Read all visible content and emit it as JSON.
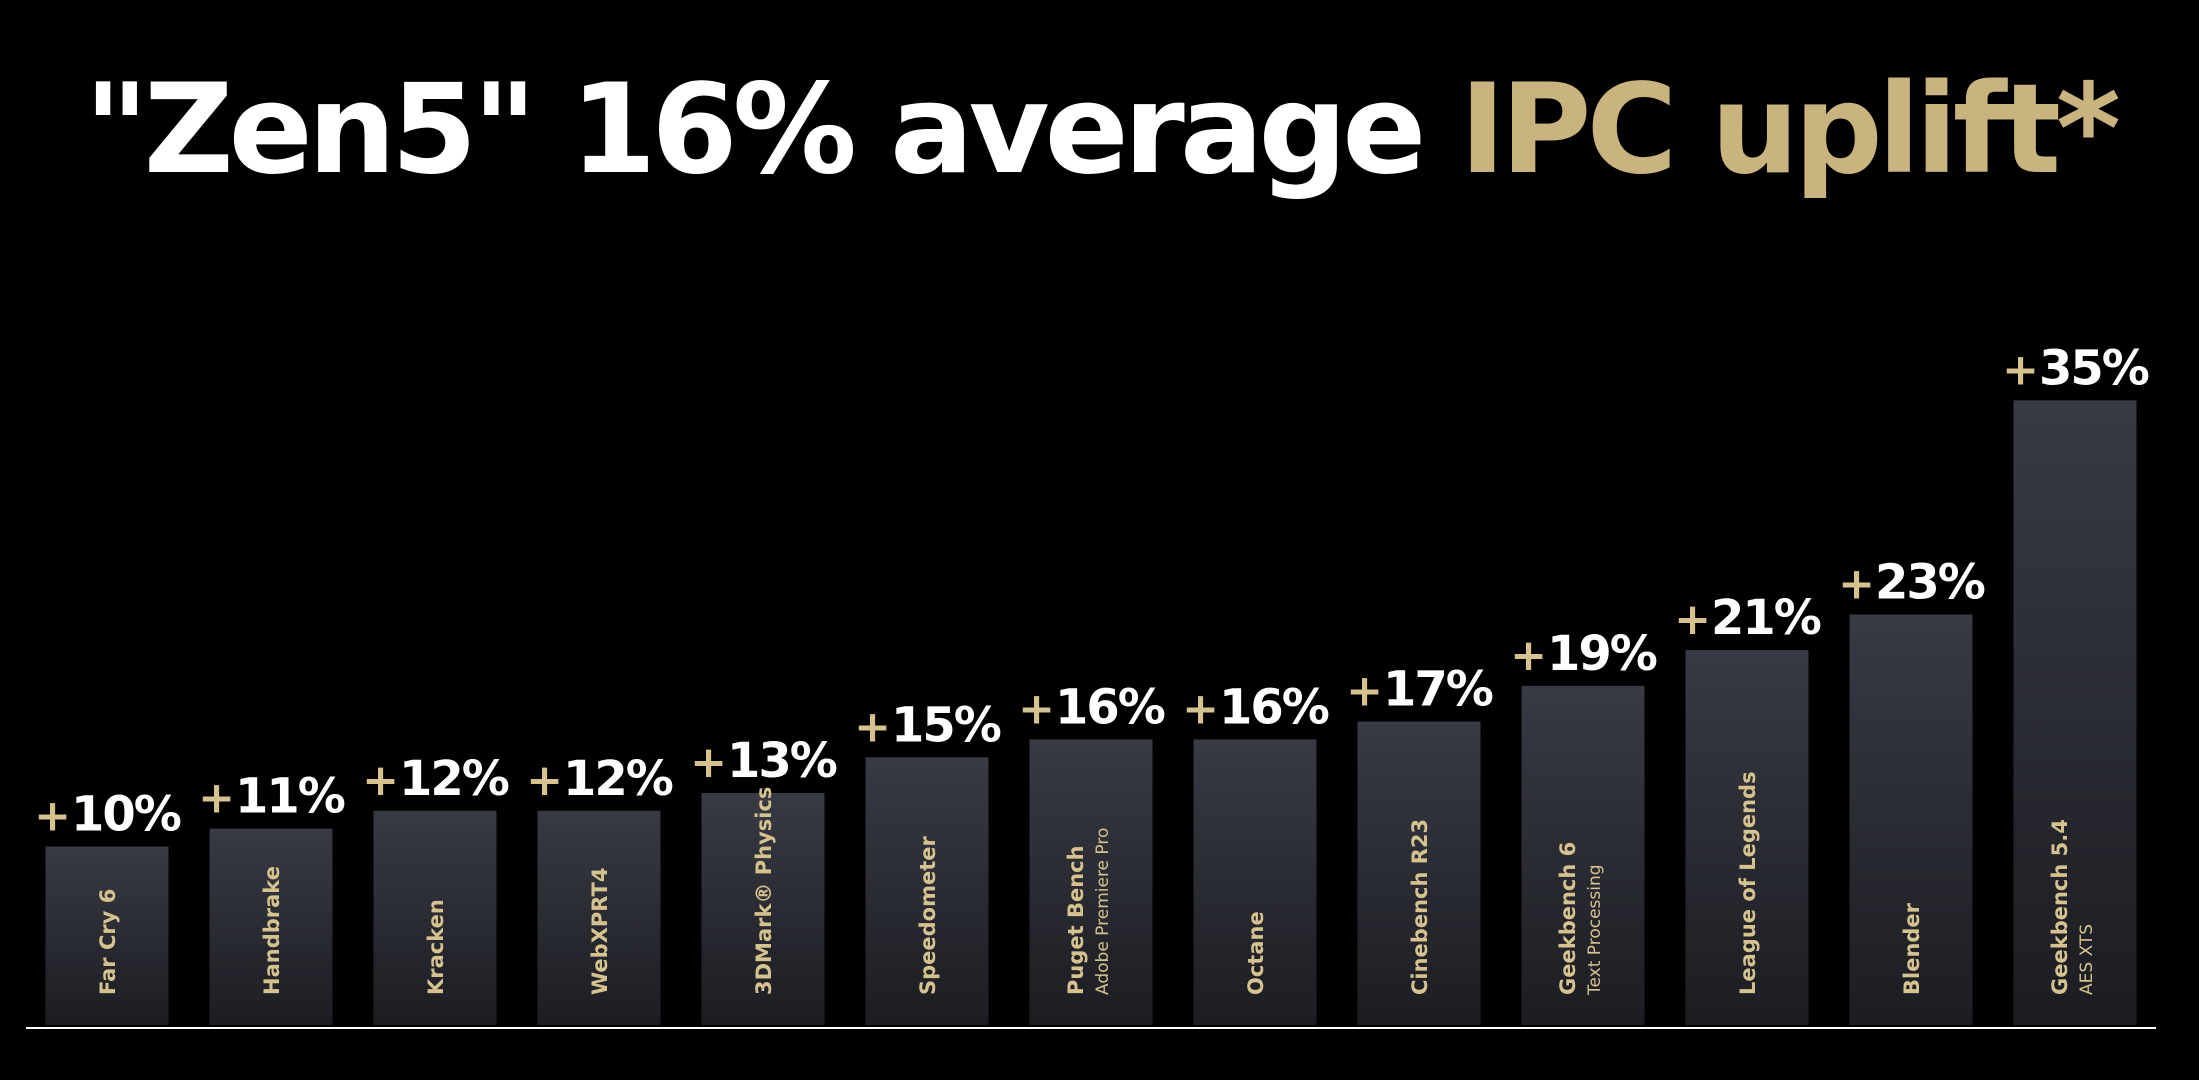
{
  "title": {
    "part1": "\"Zen5\" 16% average ",
    "part2": "IPC uplift*"
  },
  "colors": {
    "background": "#000000",
    "title_white": "#ffffff",
    "title_gold": "#c9b37e",
    "plus_gold": "#d6c28f",
    "bar_top": "#383a44",
    "bar_bottom": "#1c1d22",
    "baseline": "#ffffff"
  },
  "chart_data": {
    "type": "bar",
    "categories": [
      "Far Cry 6",
      "Handbrake",
      "Kracken",
      "WebXPRT4",
      "3DMark® Physics",
      "Speedometer",
      "Puget Bench",
      "Octane",
      "Cinebench R23",
      "Geekbench 6",
      "League of Legends",
      "Blender",
      "Geekbench 5.4"
    ],
    "subcategories": [
      "",
      "",
      "",
      "",
      "",
      "",
      "Adobe Premiere Pro",
      "",
      "",
      "Text Processing",
      "",
      "",
      "AES XTS"
    ],
    "values": [
      10,
      11,
      12,
      12,
      13,
      15,
      16,
      16,
      17,
      19,
      21,
      23,
      35
    ],
    "value_labels": [
      "10%",
      "11%",
      "12%",
      "12%",
      "13%",
      "15%",
      "16%",
      "16%",
      "17%",
      "19%",
      "21%",
      "23%",
      "35%"
    ],
    "label_prefix": "+",
    "title": "\"Zen5\" 16% average IPC uplift*",
    "xlabel": "",
    "ylabel": "",
    "ylim": [
      0,
      35
    ],
    "grid": false,
    "legend": "none"
  }
}
